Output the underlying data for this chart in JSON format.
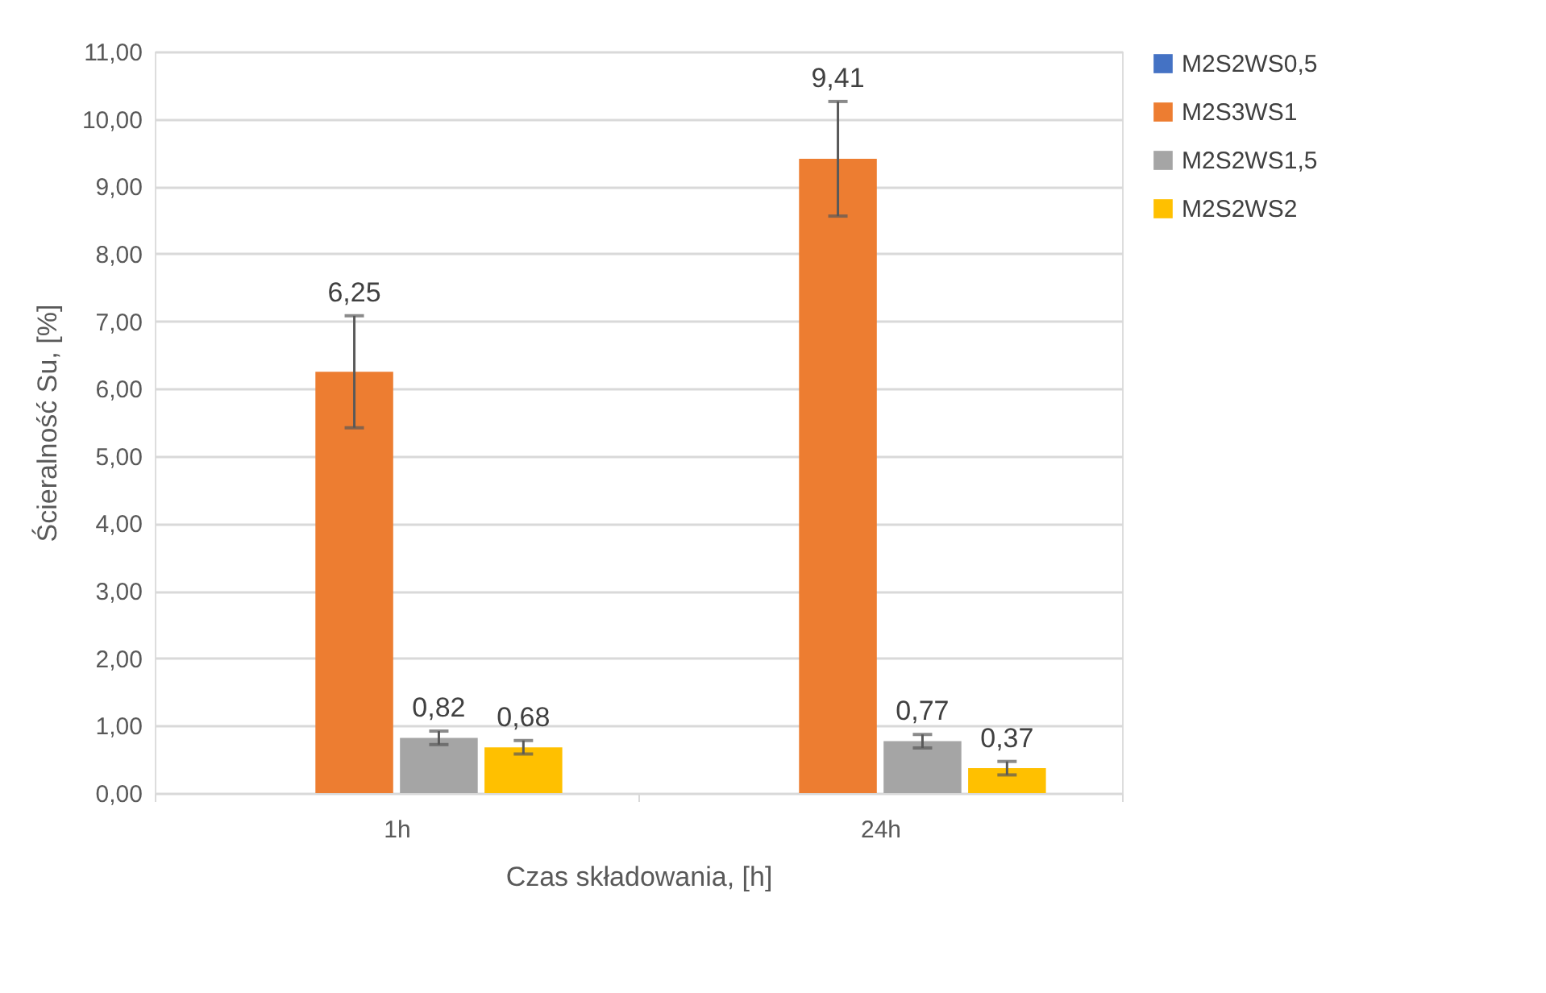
{
  "chart_data": {
    "type": "bar",
    "xlabel": "Czas składowania, [h]",
    "ylabel": "Ścieralność Su, [%]",
    "categories": [
      "1h",
      "24h"
    ],
    "series": [
      {
        "name": "M2S2WS0,5",
        "color": "#4472c4",
        "values": [
          null,
          null
        ]
      },
      {
        "name": "M2S3WS1",
        "color": "#ed7d31",
        "values": [
          6.25,
          9.41
        ],
        "errors": [
          0.83,
          0.85
        ],
        "value_labels": [
          "6,25",
          "9,41"
        ]
      },
      {
        "name": "M2S2WS1,5",
        "color": "#a5a5a5",
        "values": [
          0.82,
          0.77
        ],
        "errors": [
          0.1,
          0.1
        ],
        "value_labels": [
          "0,82",
          "0,77"
        ]
      },
      {
        "name": "M2S2WS2",
        "color": "#ffc000",
        "values": [
          0.68,
          0.37
        ],
        "errors": [
          0.1,
          0.1
        ],
        "value_labels": [
          "0,68",
          "0,37"
        ]
      }
    ],
    "ylim": [
      0,
      11
    ],
    "yticks": [
      {
        "value": 0,
        "label": "0,00"
      },
      {
        "value": 1,
        "label": "1,00"
      },
      {
        "value": 2,
        "label": "2,00"
      },
      {
        "value": 3,
        "label": "3,00"
      },
      {
        "value": 4,
        "label": "4,00"
      },
      {
        "value": 5,
        "label": "5,00"
      },
      {
        "value": 6,
        "label": "6,00"
      },
      {
        "value": 7,
        "label": "7,00"
      },
      {
        "value": 8,
        "label": "8,00"
      },
      {
        "value": 9,
        "label": "9,00"
      },
      {
        "value": 10,
        "label": "10,00"
      },
      {
        "value": 11,
        "label": "11,00"
      }
    ],
    "grid": "y",
    "legend": "right"
  }
}
